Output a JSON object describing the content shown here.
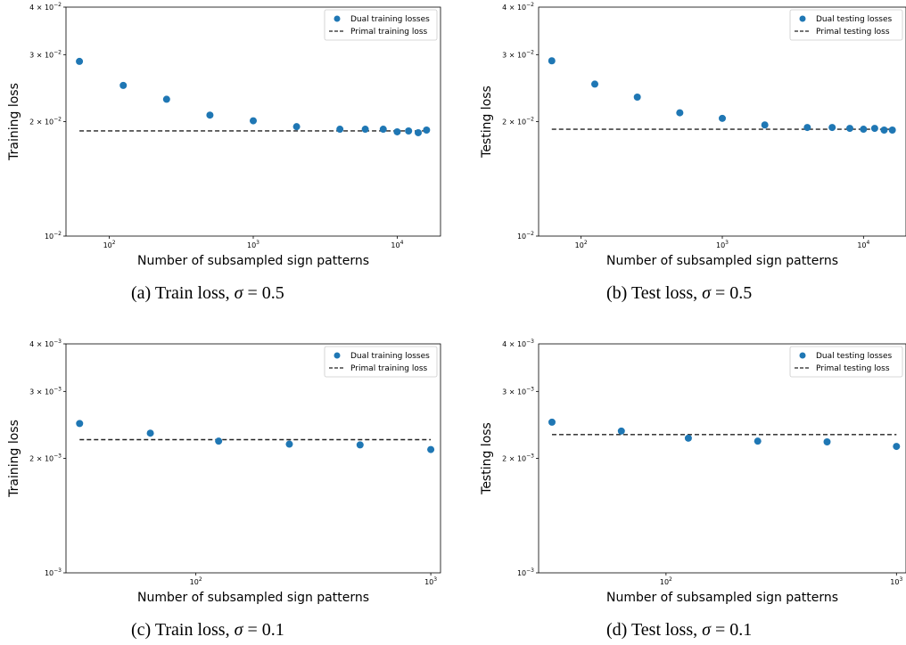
{
  "colors": {
    "dual": "#1f77b4",
    "primal": "#222222",
    "frame": "#000000"
  },
  "captions": [
    {
      "prefix": "(a) Train loss, ",
      "sym": "σ",
      "suffix": " = 0.5"
    },
    {
      "prefix": "(b) Test loss, ",
      "sym": "σ",
      "suffix": " = 0.5"
    },
    {
      "prefix": "(c) Train loss, ",
      "sym": "σ",
      "suffix": " = 0.1"
    },
    {
      "prefix": "(d) Test loss, ",
      "sym": "σ",
      "suffix": " = 0.1"
    }
  ],
  "chart_data": [
    {
      "type": "scatter",
      "xlabel": "Number of subsampled sign patterns",
      "ylabel": "Training loss",
      "xscale": "log",
      "yscale": "log",
      "xlim": [
        50,
        20000
      ],
      "ylim": [
        0.01,
        0.04
      ],
      "yticks": [
        {
          "value": 0.04,
          "base": "4 × 10",
          "exp": "−2"
        },
        {
          "value": 0.03,
          "base": "3 × 10",
          "exp": "−2"
        },
        {
          "value": 0.02,
          "base": "2 × 10",
          "exp": "−2"
        },
        {
          "value": 0.01,
          "base": "10",
          "exp": "−2"
        }
      ],
      "xticks": [
        {
          "value": 100,
          "base": "10",
          "exp": "2"
        },
        {
          "value": 1000,
          "base": "10",
          "exp": "3"
        },
        {
          "value": 10000,
          "base": "10",
          "exp": "4"
        }
      ],
      "legend_position": "top-right",
      "series": [
        {
          "name": "Dual training losses",
          "kind": "scatter",
          "x": [
            62,
            125,
            250,
            500,
            1000,
            2000,
            4000,
            6000,
            8000,
            10000,
            12000,
            14000,
            16000
          ],
          "y": [
            0.0288,
            0.0249,
            0.0229,
            0.0208,
            0.0201,
            0.0194,
            0.0191,
            0.0191,
            0.0191,
            0.0188,
            0.0189,
            0.0187,
            0.019
          ]
        },
        {
          "name": "Primal training loss",
          "kind": "line",
          "x": [
            62,
            16000
          ],
          "y": [
            0.0189,
            0.0189
          ]
        }
      ]
    },
    {
      "type": "scatter",
      "xlabel": "Number of subsampled sign patterns",
      "ylabel": "Testing loss",
      "xscale": "log",
      "yscale": "log",
      "xlim": [
        50,
        20000
      ],
      "ylim": [
        0.01,
        0.04
      ],
      "yticks": [
        {
          "value": 0.03,
          "base": "3 × 10",
          "exp": "−2"
        },
        {
          "value": 0.02,
          "base": "2 × 10",
          "exp": "−2"
        },
        {
          "value": 0.01,
          "base": "10",
          "exp": "−2"
        }
      ],
      "xticks": [
        {
          "value": 100,
          "base": "10",
          "exp": "2"
        },
        {
          "value": 1000,
          "base": "10",
          "exp": "3"
        },
        {
          "value": 10000,
          "base": "10",
          "exp": "4"
        }
      ],
      "extra_label": {
        "base": "4 × 10",
        "exp": "−2"
      },
      "legend_position": "top-right",
      "series": [
        {
          "name": "Dual testing losses",
          "kind": "scatter",
          "x": [
            62,
            125,
            250,
            500,
            1000,
            2000,
            4000,
            6000,
            8000,
            10000,
            12000,
            14000,
            16000
          ],
          "y": [
            0.0289,
            0.0251,
            0.0232,
            0.0211,
            0.0204,
            0.0196,
            0.0193,
            0.0193,
            0.0192,
            0.0191,
            0.0192,
            0.019,
            0.019
          ]
        },
        {
          "name": "Primal testing loss",
          "kind": "line",
          "x": [
            62,
            16000
          ],
          "y": [
            0.0191,
            0.0191
          ]
        }
      ]
    },
    {
      "type": "scatter",
      "xlabel": "Number of subsampled sign patterns",
      "ylabel": "Training loss",
      "xscale": "log",
      "yscale": "log",
      "xlim": [
        28,
        1100
      ],
      "ylim": [
        0.001,
        0.004
      ],
      "yticks": [
        {
          "value": 0.004,
          "base": "4 × 10",
          "exp": "−3"
        },
        {
          "value": 0.003,
          "base": "3 × 10",
          "exp": "−3"
        },
        {
          "value": 0.002,
          "base": "2 × 10",
          "exp": "−3"
        },
        {
          "value": 0.001,
          "base": "10",
          "exp": "−3"
        }
      ],
      "xticks": [
        {
          "value": 100,
          "base": "10",
          "exp": "2"
        },
        {
          "value": 1000,
          "base": "10",
          "exp": "3"
        }
      ],
      "legend_position": "top-right",
      "series": [
        {
          "name": "Dual training losses",
          "kind": "scatter",
          "x": [
            32,
            64,
            125,
            250,
            500,
            1000
          ],
          "y": [
            0.00247,
            0.00233,
            0.00222,
            0.00218,
            0.00217,
            0.00211
          ]
        },
        {
          "name": "Primal training loss",
          "kind": "line",
          "x": [
            32,
            1000
          ],
          "y": [
            0.00224,
            0.00224
          ]
        }
      ]
    },
    {
      "type": "scatter",
      "xlabel": "Number of subsampled sign patterns",
      "ylabel": "Testing loss",
      "xscale": "log",
      "yscale": "log",
      "xlim": [
        28,
        1100
      ],
      "ylim": [
        0.001,
        0.004
      ],
      "yticks": [
        {
          "value": 0.003,
          "base": "3 × 10",
          "exp": "−3"
        },
        {
          "value": 0.002,
          "base": "2 × 10",
          "exp": "−3"
        },
        {
          "value": 0.001,
          "base": "10",
          "exp": "−3"
        }
      ],
      "xticks": [
        {
          "value": 100,
          "base": "10",
          "exp": "2"
        },
        {
          "value": 1000,
          "base": "10",
          "exp": "3"
        }
      ],
      "extra_label": {
        "base": "4 × 10",
        "exp": "−3"
      },
      "legend_position": "top-right",
      "series": [
        {
          "name": "Dual testing losses",
          "kind": "scatter",
          "x": [
            32,
            64,
            125,
            250,
            500,
            1000
          ],
          "y": [
            0.00249,
            0.00236,
            0.00226,
            0.00222,
            0.00221,
            0.00215
          ]
        },
        {
          "name": "Primal testing loss",
          "kind": "line",
          "x": [
            32,
            1000
          ],
          "y": [
            0.00231,
            0.00231
          ]
        }
      ]
    }
  ]
}
